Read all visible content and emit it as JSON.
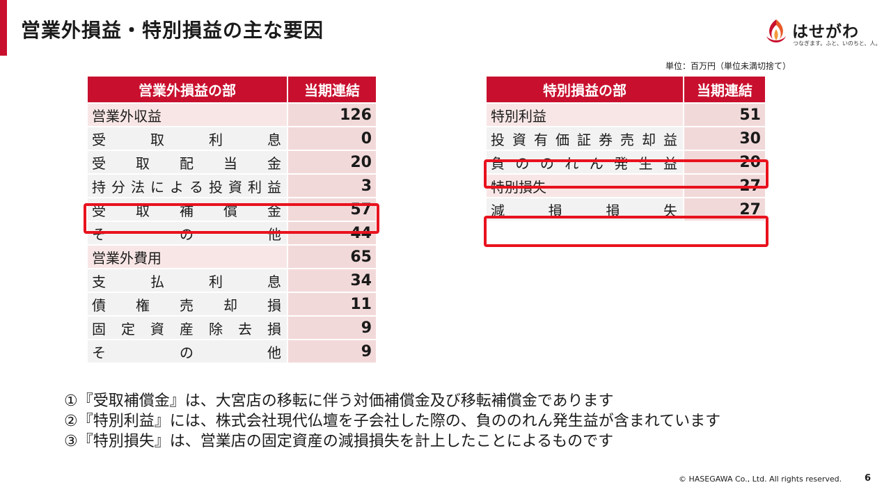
{
  "page_title": "営業外損益・特別損益の主な要因",
  "logo": {
    "name": "はせがわ",
    "tagline": "つなぎます。ふと、いのちと、人。",
    "brand_color": "#c8102e"
  },
  "unit_note": "単位：百万円（単位未満切捨て）",
  "non_operating": {
    "headers": [
      "営業外損益の部",
      "当期連結"
    ],
    "rows": [
      {
        "label": "営業外収益",
        "value": "126",
        "category": true
      },
      {
        "label": "受取利息",
        "value": "0"
      },
      {
        "label": "受取配当金",
        "value": "20"
      },
      {
        "label": "持分法による投資利益",
        "value": "3"
      },
      {
        "label": "受取補償金",
        "value": "57",
        "highlight": true
      },
      {
        "label": "その他",
        "value": "44"
      },
      {
        "label": "営業外費用",
        "value": "65",
        "category": true
      },
      {
        "label": "支払利息",
        "value": "34"
      },
      {
        "label": "債権売却損",
        "value": "11"
      },
      {
        "label": "固定資産除去損",
        "value": "9"
      },
      {
        "label": "その他",
        "value": "9"
      }
    ]
  },
  "extraordinary": {
    "headers": [
      "特別損益の部",
      "当期連結"
    ],
    "rows": [
      {
        "label": "特別利益",
        "value": "51",
        "category": true
      },
      {
        "label": "投資有価証券売却益",
        "value": "30"
      },
      {
        "label": "負ののれん発生益",
        "value": "20",
        "highlight": true
      },
      {
        "label": "特別損失",
        "value": "27",
        "category": true
      },
      {
        "label": "減損損失",
        "value": "27",
        "highlight": true
      }
    ]
  },
  "notes": [
    "①『受取補償金』は、大宮店の移転に伴う対価補償金及び移転補償金であります",
    "②『特別利益』には、株式会社現代仏壇を子会社した際の、負ののれん発生益が含まれています",
    "③『特別損失』は、営業店の固定資産の減損損失を計上したことによるものです"
  ],
  "footer": "© HASEGAWA Co., Ltd. All rights reserved.",
  "page_number": "6"
}
